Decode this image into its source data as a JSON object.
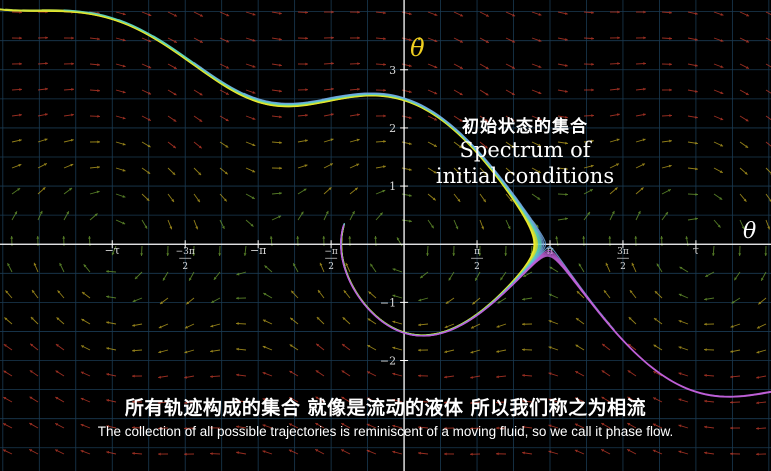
{
  "axes": {
    "x_label": "θ",
    "y_label": "θ̇",
    "x_ticks": [
      {
        "value": -6.2832,
        "label": "−τ"
      },
      {
        "value": -4.7124,
        "num": "−3π",
        "den": "2"
      },
      {
        "value": -3.1416,
        "label": "−π"
      },
      {
        "value": -1.5708,
        "num": "−π",
        "den": "2"
      },
      {
        "value": 1.5708,
        "num": "π",
        "den": "2"
      },
      {
        "value": 3.1416,
        "label": "π"
      },
      {
        "value": 4.7124,
        "num": "3π",
        "den": "2"
      },
      {
        "value": 6.2832,
        "label": "τ"
      }
    ],
    "y_ticks": [
      {
        "value": 3,
        "label": "3"
      },
      {
        "value": 2,
        "label": "2"
      },
      {
        "value": 1,
        "label": "1"
      },
      {
        "value": -1,
        "label": "−1"
      },
      {
        "value": -2,
        "label": "−2"
      }
    ],
    "x_range": [
      -8.7,
      7.9
    ],
    "y_range": [
      -3.9,
      4.2
    ]
  },
  "vector_field": {
    "description": "damped pendulum phase flow",
    "colors": [
      "#c03a2a",
      "#b8a020",
      "#6a9a30"
    ]
  },
  "trajectory_colors": [
    "#f2ec2a",
    "#c8e040",
    "#5ad0c0",
    "#70a8e0",
    "#c060d8"
  ],
  "annotation": {
    "chinese": "初始状态的集合",
    "english_line1": "Spectrum of",
    "english_line2": "initial conditions"
  },
  "subtitles": {
    "chinese": "所有轨迹构成的集合 就像是流动的液体 所以我们称之为相流",
    "english": "The collection of all possible trajectories is reminiscent of a moving fluid, so we call it phase flow."
  }
}
